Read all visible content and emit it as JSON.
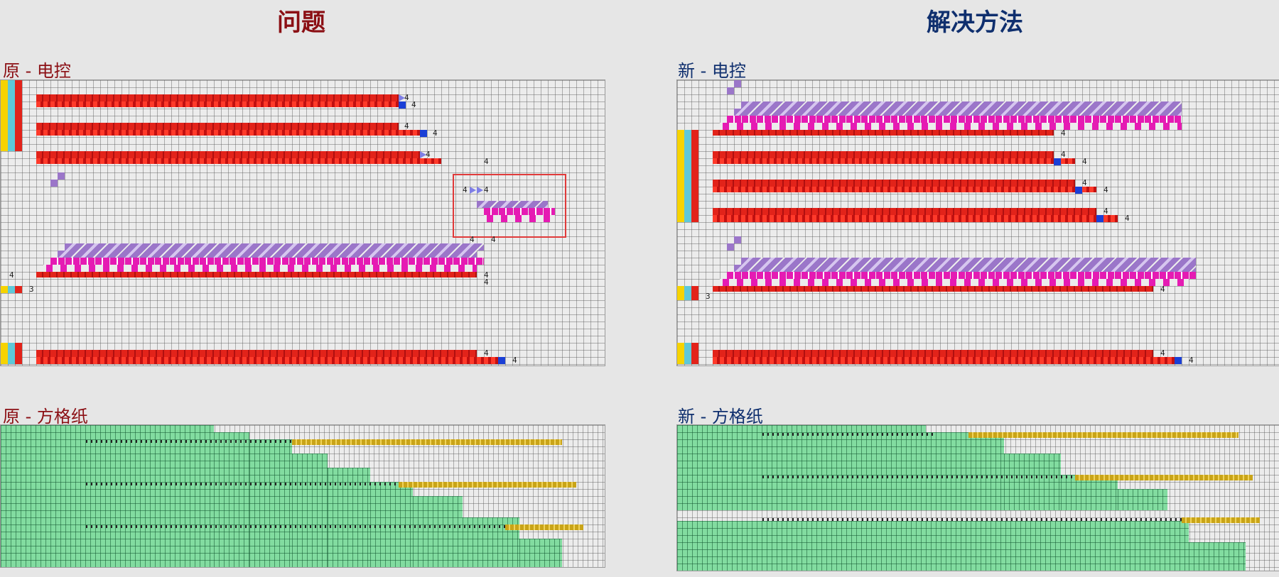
{
  "headings": {
    "problem": "问题",
    "solution": "解决方法"
  },
  "sections": {
    "old_electronic": "原 - 电控",
    "new_electronic": "新 - 电控",
    "old_graph_paper": "原 - 方格纸",
    "new_graph_paper": "新 - 方格纸"
  },
  "cell_numbers": {
    "three": "3",
    "four": "4"
  },
  "colors": {
    "problem_heading": "#8b0f14",
    "solution_heading": "#0f2f6e",
    "needle_red": "#e2231a",
    "purple": "#9b76c9",
    "magenta": "#e51bb3",
    "green": "#82dca0",
    "yellow": "#c9a418",
    "highlight": "#e03a3a"
  }
}
